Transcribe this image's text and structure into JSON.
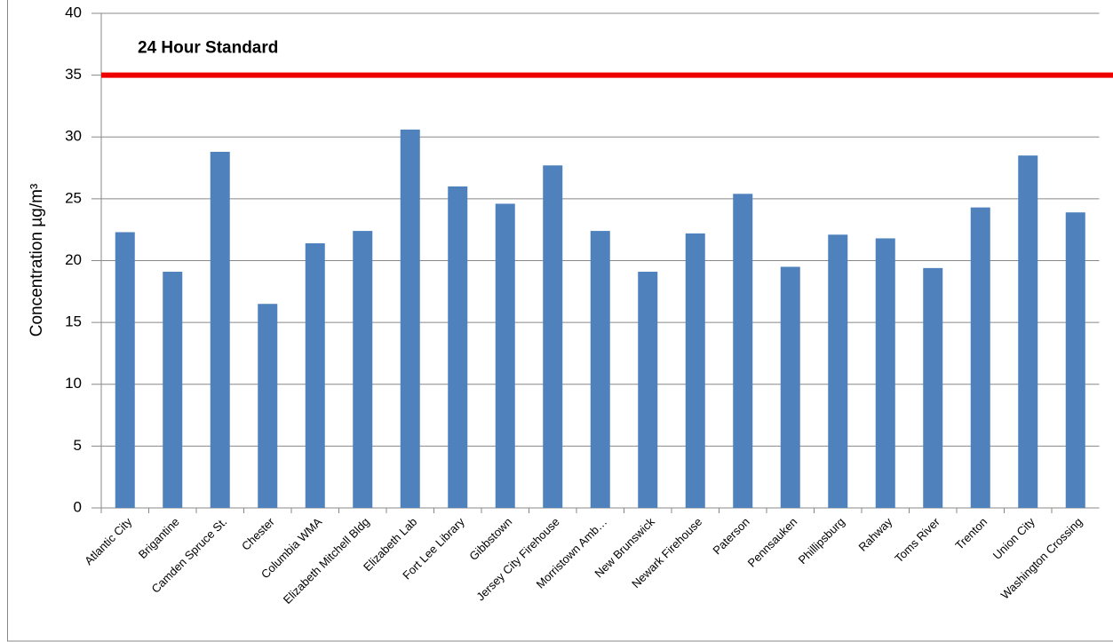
{
  "chart_data": {
    "type": "bar",
    "y_label": "Concentration µg/m³",
    "categories": [
      "Atlantic City",
      "Brigantine",
      "Camden Spruce St.",
      "Chester",
      "Columbia WMA",
      "Elizabeth Mitchell Bldg",
      "Elizabeth Lab",
      "Fort Lee Library",
      "Gibbstown",
      "Jersey City Firehouse",
      "Morristown Amb…",
      "New Brunswick",
      "Newark Firehouse",
      "Paterson",
      "Pennsauken",
      "Phillipsburg",
      "Rahway",
      "Toms River",
      "Trenton",
      "Union City",
      "Washington Crossing"
    ],
    "values": [
      22.3,
      19.1,
      28.8,
      16.5,
      21.4,
      22.4,
      30.6,
      26.0,
      24.6,
      27.7,
      22.4,
      19.1,
      22.2,
      25.4,
      19.5,
      22.1,
      21.8,
      19.4,
      24.3,
      28.5,
      23.9
    ],
    "color": "#4f81bd",
    "ylim": [
      0,
      40
    ],
    "yticks": [
      0,
      5,
      10,
      15,
      20,
      25,
      30,
      35,
      40
    ],
    "grid": true,
    "threshold": {
      "value": 35,
      "label": "24 Hour Standard",
      "color": "#ee0000"
    }
  }
}
